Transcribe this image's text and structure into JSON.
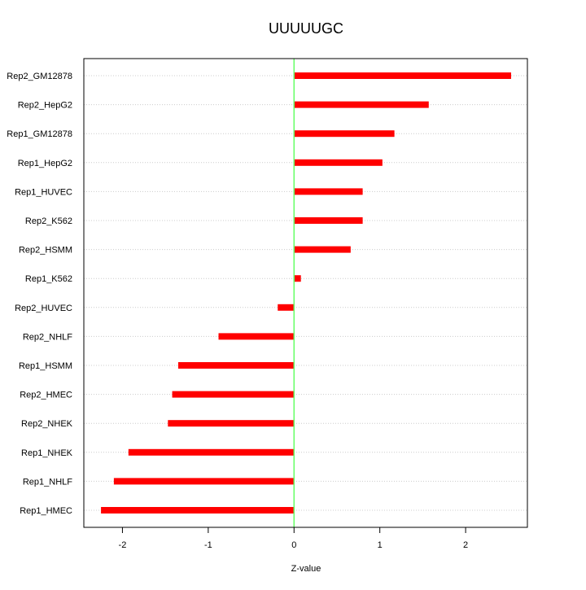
{
  "chart_data": {
    "type": "bar",
    "orientation": "horizontal",
    "title": "UUUUUGC",
    "xlabel": "Z-value",
    "ylabel": "",
    "xlim": [
      -2.45,
      2.72
    ],
    "xticks": [
      -2,
      -1,
      0,
      1,
      2
    ],
    "xtick_labels": [
      "-2",
      "-1",
      "0",
      "1",
      "2"
    ],
    "grid": "horizontal dotted",
    "categories": [
      "Rep2_GM12878",
      "Rep2_HepG2",
      "Rep1_GM12878",
      "Rep1_HepG2",
      "Rep1_HUVEC",
      "Rep2_K562",
      "Rep2_HSMM",
      "Rep1_K562",
      "Rep2_HUVEC",
      "Rep2_NHLF",
      "Rep1_HSMM",
      "Rep2_HMEC",
      "Rep2_NHEK",
      "Rep1_NHEK",
      "Rep1_NHLF",
      "Rep1_HMEC"
    ],
    "values": [
      2.53,
      1.57,
      1.17,
      1.03,
      0.8,
      0.8,
      0.66,
      0.08,
      -0.19,
      -0.88,
      -1.35,
      -1.42,
      -1.47,
      -1.93,
      -2.1,
      -2.25
    ],
    "colors": {
      "bar": "#ff0000",
      "zero_line": "#66ff66",
      "grid": "#cccccc",
      "axis": "#000000"
    }
  }
}
